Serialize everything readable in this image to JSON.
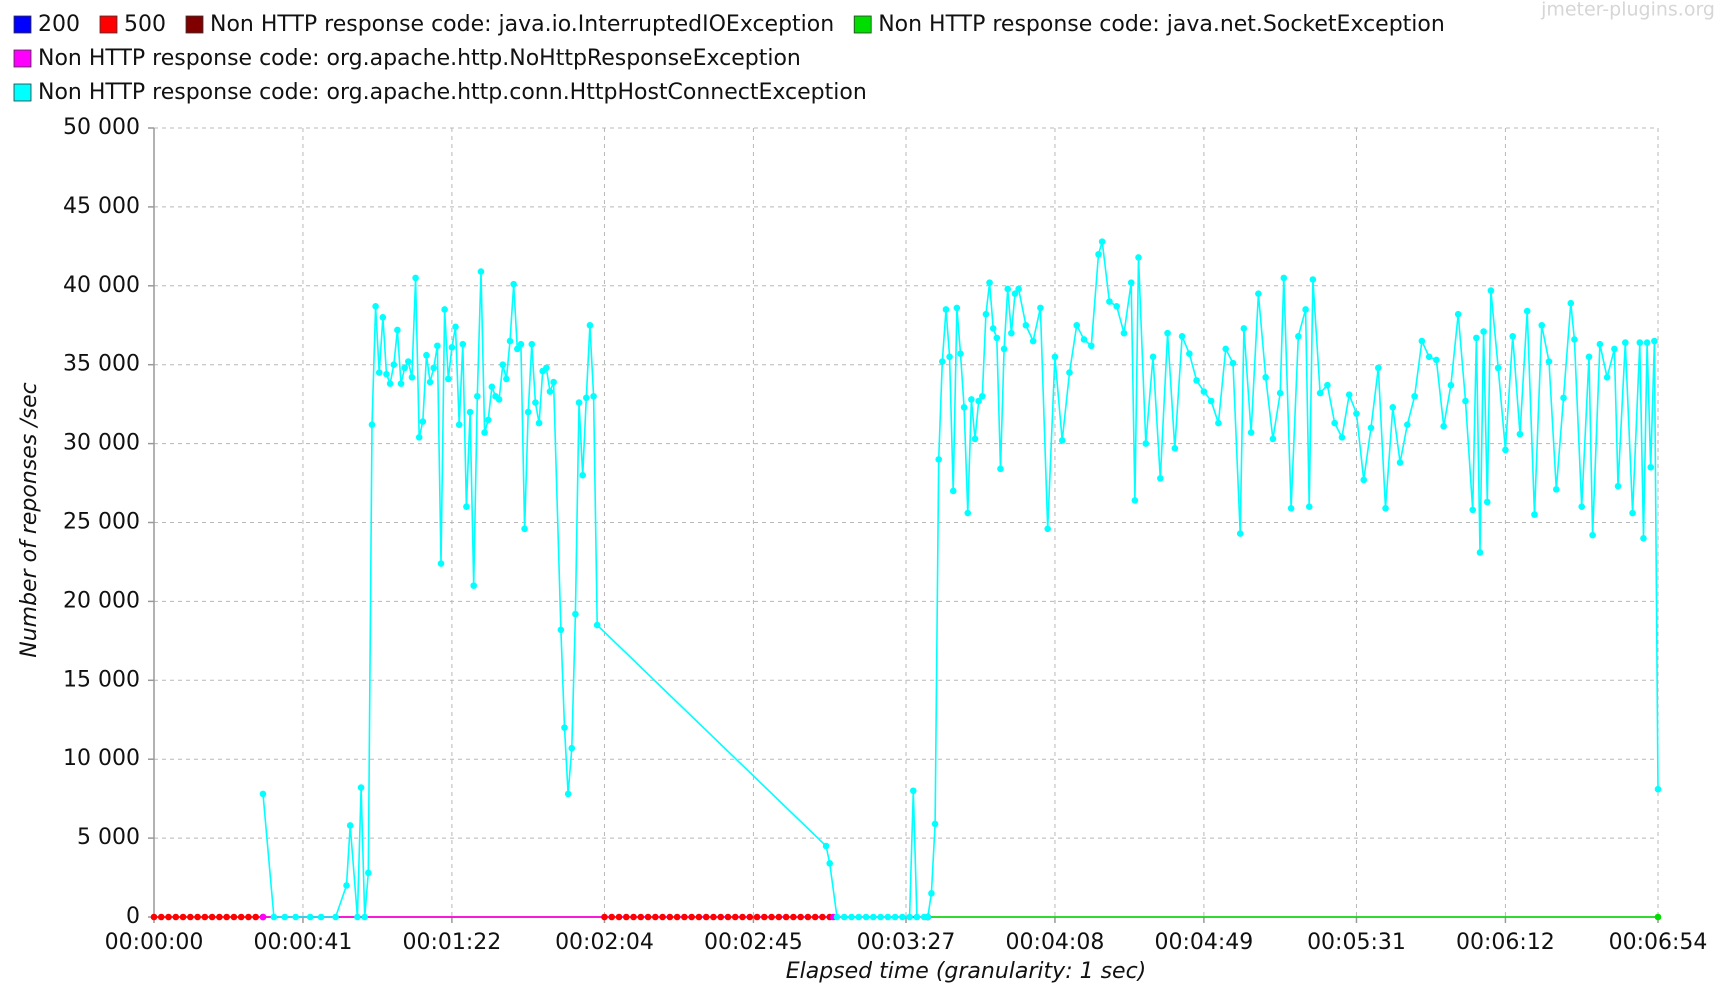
{
  "chart_data": {
    "type": "line",
    "watermark": "jmeter-plugins.org",
    "x_label": "Elapsed time (granularity: 1 sec)",
    "y_label": "Number of reponses /sec",
    "xlim": [
      0,
      414
    ],
    "ylim": [
      0,
      50000
    ],
    "xticks": [
      {
        "value": 0,
        "label": "00:00:00"
      },
      {
        "value": 41,
        "label": "00:00:41"
      },
      {
        "value": 82,
        "label": "00:01:22"
      },
      {
        "value": 124,
        "label": "00:02:04"
      },
      {
        "value": 165,
        "label": "00:02:45"
      },
      {
        "value": 207,
        "label": "00:03:27"
      },
      {
        "value": 248,
        "label": "00:04:08"
      },
      {
        "value": 289,
        "label": "00:04:49"
      },
      {
        "value": 331,
        "label": "00:05:31"
      },
      {
        "value": 372,
        "label": "00:06:12"
      },
      {
        "value": 414,
        "label": "00:06:54"
      }
    ],
    "yticks": [
      {
        "value": 0,
        "label": "0"
      },
      {
        "value": 5000,
        "label": "5 000"
      },
      {
        "value": 10000,
        "label": "10 000"
      },
      {
        "value": 15000,
        "label": "15 000"
      },
      {
        "value": 20000,
        "label": "20 000"
      },
      {
        "value": 25000,
        "label": "25 000"
      },
      {
        "value": 30000,
        "label": "30 000"
      },
      {
        "value": 35000,
        "label": "35 000"
      },
      {
        "value": 40000,
        "label": "40 000"
      },
      {
        "value": 45000,
        "label": "45 000"
      },
      {
        "value": 50000,
        "label": "50 000"
      }
    ],
    "grid": true,
    "series": [
      {
        "name": "200",
        "color": "#0000ff",
        "x": [],
        "values": []
      },
      {
        "name": "500",
        "color": "#ff0000",
        "x": [
          0,
          2,
          4,
          6,
          8,
          10,
          12,
          14,
          16,
          18,
          20,
          22,
          24,
          26,
          28,
          30,
          124,
          126,
          128,
          130,
          132,
          134,
          136,
          138,
          140,
          142,
          144,
          146,
          148,
          150,
          152,
          154,
          156,
          158,
          160,
          162,
          164,
          166,
          168,
          170,
          172,
          174,
          176,
          178,
          180,
          182,
          184,
          186
        ],
        "values": [
          0,
          0,
          0,
          0,
          0,
          0,
          0,
          0,
          0,
          0,
          0,
          0,
          0,
          0,
          0,
          0,
          0,
          0,
          0,
          0,
          0,
          0,
          0,
          0,
          0,
          0,
          0,
          0,
          0,
          0,
          0,
          0,
          0,
          0,
          0,
          0,
          0,
          0,
          0,
          0,
          0,
          0,
          0,
          0,
          0,
          0,
          0,
          0
        ]
      },
      {
        "name": "Non HTTP response code: java.io.InterruptedIOException",
        "color": "#800000",
        "x": [],
        "values": []
      },
      {
        "name": "Non HTTP response code: java.net.SocketException",
        "color": "#00dd00",
        "x": [
          213,
          414
        ],
        "values": [
          0,
          0
        ]
      },
      {
        "name": "Non HTTP response code: org.apache.http.NoHttpResponseException",
        "color": "#ff00ff",
        "x": [
          30,
          187,
          213
        ],
        "values": [
          0,
          0,
          0
        ]
      },
      {
        "name": "Non HTTP response code: org.apache.http.conn.HttpHostConnectException",
        "color": "#00ffff",
        "x": [
          30,
          33,
          36,
          39,
          43,
          46,
          50,
          53,
          54,
          56,
          57,
          58,
          59,
          60,
          61,
          62,
          63,
          64,
          65,
          66,
          67,
          68,
          69,
          70,
          71,
          72,
          73,
          74,
          75,
          76,
          77,
          78,
          79,
          80,
          81,
          82,
          83,
          84,
          85,
          86,
          87,
          88,
          89,
          90,
          91,
          92,
          93,
          94,
          95,
          96,
          97,
          98,
          99,
          100,
          101,
          102,
          103,
          104,
          105,
          106,
          107,
          108,
          109,
          110,
          112,
          113,
          114,
          115,
          116,
          117,
          118,
          119,
          120,
          121,
          122,
          185,
          186,
          188,
          190,
          192,
          194,
          196,
          198,
          200,
          202,
          204,
          206,
          208,
          209,
          210,
          212,
          213,
          214,
          215,
          216,
          217,
          218,
          219,
          220,
          221,
          222,
          223,
          224,
          225,
          226,
          227,
          228,
          229,
          230,
          231,
          232,
          233,
          234,
          235,
          236,
          237,
          238,
          240,
          242,
          244,
          246,
          248,
          250,
          252,
          254,
          256,
          258,
          260,
          261,
          263,
          265,
          267,
          269,
          270,
          271,
          273,
          275,
          277,
          279,
          281,
          283,
          285,
          287,
          289,
          291,
          293,
          295,
          297,
          299,
          300,
          302,
          304,
          306,
          308,
          310,
          311,
          313,
          315,
          317,
          318,
          319,
          321,
          323,
          325,
          327,
          329,
          331,
          333,
          335,
          337,
          339,
          341,
          343,
          345,
          347,
          349,
          351,
          353,
          355,
          357,
          359,
          361,
          363,
          364,
          365,
          366,
          367,
          368,
          370,
          372,
          374,
          376,
          378,
          380,
          382,
          384,
          386,
          388,
          390,
          391,
          393,
          395,
          396,
          398,
          400,
          402,
          403,
          405,
          407,
          409,
          410,
          411,
          412,
          413,
          414
        ],
        "values": [
          7800,
          0,
          0,
          0,
          0,
          0,
          0,
          2000,
          5800,
          0,
          8200,
          0,
          2800,
          31200,
          38700,
          34500,
          38000,
          34400,
          33800,
          35000,
          37200,
          33800,
          34800,
          35200,
          34200,
          40500,
          30400,
          31400,
          35600,
          33900,
          34800,
          36200,
          22400,
          38500,
          34100,
          36100,
          37400,
          31200,
          36300,
          26000,
          32000,
          21000,
          33000,
          40900,
          30700,
          31500,
          33600,
          33000,
          32800,
          35000,
          34100,
          36500,
          40100,
          36000,
          36300,
          24600,
          32000,
          36300,
          32600,
          31300,
          34600,
          34800,
          33300,
          33900,
          18200,
          12000,
          7800,
          10700,
          19200,
          32600,
          28000,
          32900,
          37500,
          33000,
          18500,
          4500,
          3400,
          0,
          0,
          0,
          0,
          0,
          0,
          0,
          0,
          0,
          0,
          0,
          8000,
          0,
          0,
          0,
          1500,
          5900,
          29000,
          35200,
          38500,
          35500,
          27000,
          38600,
          35700,
          32300,
          25600,
          32800,
          30300,
          32700,
          33000,
          38200,
          40200,
          37300,
          36700,
          28400,
          36000,
          39800,
          37000,
          39500,
          39800,
          37500,
          36500,
          38600,
          24600,
          35500,
          30200,
          34500,
          37500,
          36600,
          36200,
          42000,
          42800,
          39000,
          38700,
          37000,
          40200,
          26400,
          41800,
          30000,
          35500,
          27800,
          37000,
          29700,
          36800,
          35700,
          34000,
          33300,
          32700,
          31300,
          36000,
          35100,
          24300,
          37300,
          30700,
          39500,
          34200,
          30300,
          33200,
          40500,
          25900,
          36800,
          38500,
          26000,
          40400,
          33200,
          33700,
          31300,
          30400,
          33100,
          31900,
          27700,
          31000,
          34800,
          25900,
          32300,
          28800,
          31200,
          33000,
          36500,
          35500,
          35300,
          31100,
          33700,
          38200,
          32700,
          25800,
          36700,
          23100,
          37100,
          26300,
          39700,
          34800,
          29600,
          36800,
          30600,
          38400,
          25500,
          37500,
          35200,
          27100,
          32900,
          38900,
          36600,
          26000,
          35500,
          24200,
          36300,
          34200,
          36000,
          27300,
          36400,
          25600,
          36400,
          24000,
          36400,
          28500,
          36500,
          8100
        ]
      }
    ]
  }
}
